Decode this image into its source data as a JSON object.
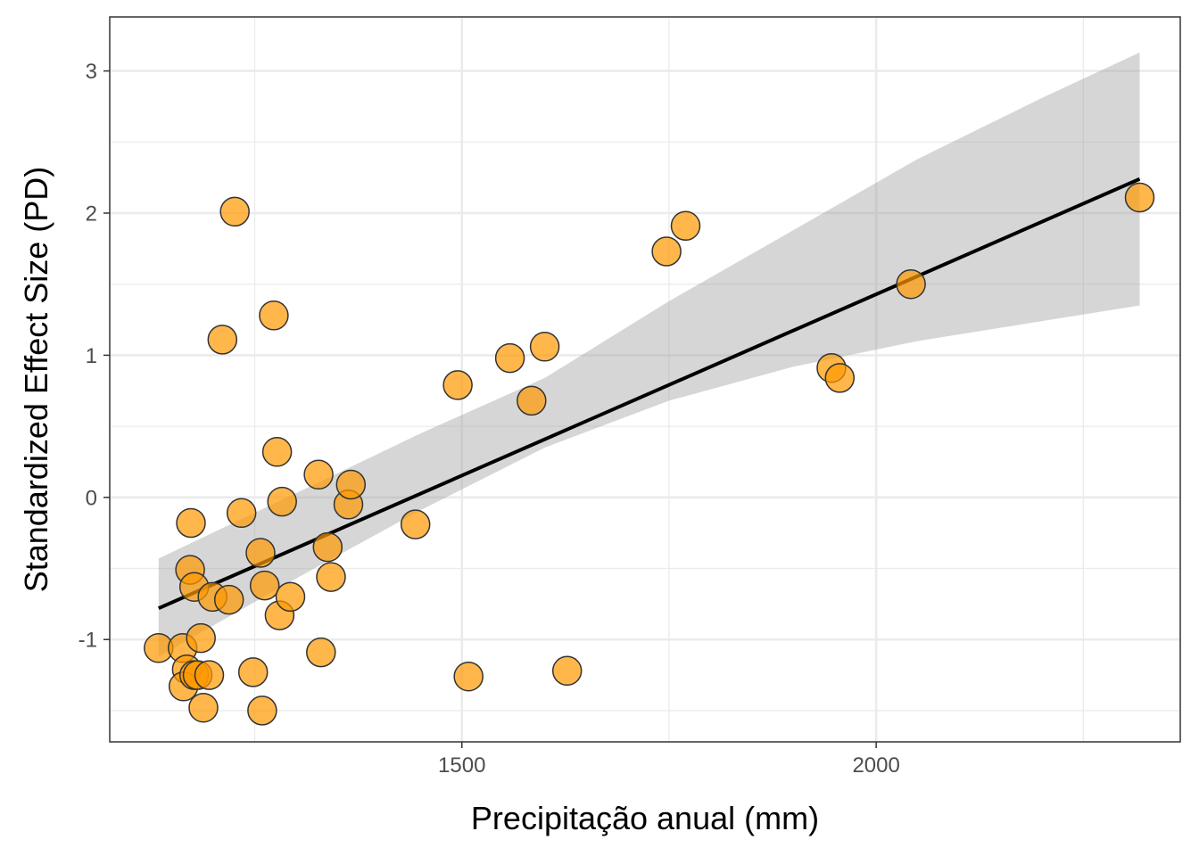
{
  "chart_data": {
    "type": "scatter",
    "title": "",
    "xlabel": "Precipitação anual (mm)",
    "ylabel": "Standardized Effect Size  (PD)",
    "xlim": [
      1075,
      2367
    ],
    "ylim": [
      -1.72,
      3.38
    ],
    "x_ticks": [
      1500,
      2000
    ],
    "x_tick_labels": [
      "1500",
      "2000"
    ],
    "y_ticks": [
      -1,
      0,
      1,
      2,
      3
    ],
    "y_tick_labels": [
      "-1",
      "0",
      "1",
      "2",
      "3"
    ],
    "grid": true,
    "legend": "none",
    "point_fill": "#ff9800",
    "point_stroke": "#333333",
    "points": [
      {
        "x": 1134,
        "y": -1.06
      },
      {
        "x": 1163,
        "y": -1.06
      },
      {
        "x": 1168,
        "y": -1.21
      },
      {
        "x": 1164,
        "y": -1.33
      },
      {
        "x": 1177,
        "y": -1.25
      },
      {
        "x": 1181,
        "y": -1.25
      },
      {
        "x": 1195,
        "y": -1.25
      },
      {
        "x": 1185,
        "y": -0.99
      },
      {
        "x": 1188,
        "y": -1.48
      },
      {
        "x": 1173,
        "y": -0.18
      },
      {
        "x": 1172,
        "y": -0.51
      },
      {
        "x": 1177,
        "y": -0.63
      },
      {
        "x": 1199,
        "y": -0.7
      },
      {
        "x": 1219,
        "y": -0.72
      },
      {
        "x": 1211,
        "y": 1.11
      },
      {
        "x": 1226,
        "y": 2.01
      },
      {
        "x": 1234,
        "y": -0.11
      },
      {
        "x": 1248,
        "y": -1.23
      },
      {
        "x": 1257,
        "y": -0.39
      },
      {
        "x": 1259,
        "y": -1.5
      },
      {
        "x": 1262,
        "y": -0.62
      },
      {
        "x": 1273,
        "y": 1.28
      },
      {
        "x": 1277,
        "y": 0.32
      },
      {
        "x": 1283,
        "y": -0.03
      },
      {
        "x": 1280,
        "y": -0.83
      },
      {
        "x": 1293,
        "y": -0.7
      },
      {
        "x": 1327,
        "y": 0.16
      },
      {
        "x": 1330,
        "y": -1.09
      },
      {
        "x": 1338,
        "y": -0.35
      },
      {
        "x": 1342,
        "y": -0.56
      },
      {
        "x": 1363,
        "y": -0.05
      },
      {
        "x": 1366,
        "y": 0.09
      },
      {
        "x": 1444,
        "y": -0.19
      },
      {
        "x": 1495,
        "y": 0.79
      },
      {
        "x": 1508,
        "y": -1.26
      },
      {
        "x": 1558,
        "y": 0.98
      },
      {
        "x": 1584,
        "y": 0.68
      },
      {
        "x": 1600,
        "y": 1.06
      },
      {
        "x": 1627,
        "y": -1.22
      },
      {
        "x": 1747,
        "y": 1.73
      },
      {
        "x": 1770,
        "y": 1.91
      },
      {
        "x": 1946,
        "y": 0.91
      },
      {
        "x": 1956,
        "y": 0.84
      },
      {
        "x": 2042,
        "y": 1.5
      },
      {
        "x": 2318,
        "y": 2.11
      }
    ],
    "fit_line": {
      "x": [
        1134,
        2318
      ],
      "y": [
        -0.78,
        2.24
      ]
    },
    "confidence_band": {
      "x": [
        1134,
        1300,
        1450,
        1600,
        1750,
        1900,
        2050,
        2200,
        2318
      ],
      "lower": [
        -1.12,
        -0.57,
        -0.09,
        0.35,
        0.68,
        0.92,
        1.1,
        1.24,
        1.35
      ],
      "upper": [
        -0.43,
        0.03,
        0.45,
        0.84,
        1.38,
        1.88,
        2.38,
        2.81,
        3.13
      ]
    }
  }
}
